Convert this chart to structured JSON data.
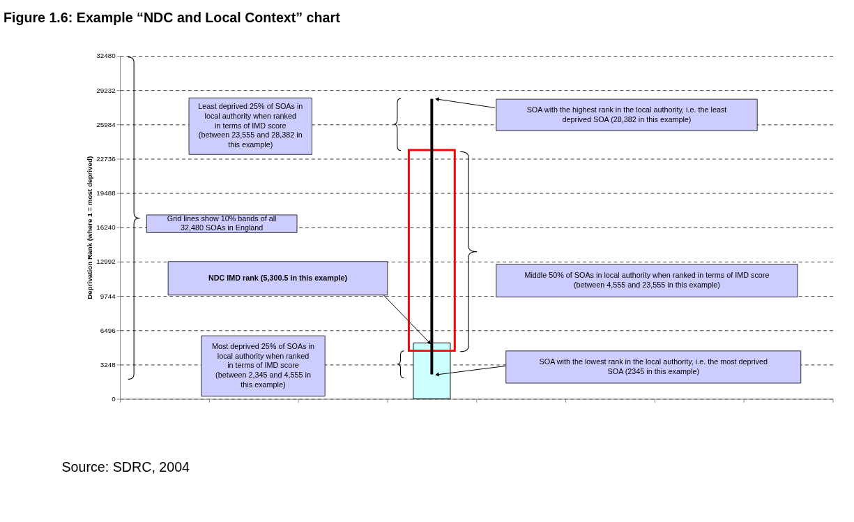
{
  "chart_data": {
    "type": "bar",
    "title": "Figure 1.6: Example “NDC and Local Context” chart",
    "ylabel": "Deprivation Rank (where 1 = most deprived)",
    "categories": [
      null,
      null,
      null,
      null,
      null,
      null,
      null,
      null
    ],
    "ylim": [
      0,
      32480
    ],
    "yticks": [
      0,
      3248,
      6496,
      9744,
      12992,
      16240,
      19488,
      22736,
      25984,
      29232,
      32480
    ],
    "grid": "y",
    "line_style": "dashed",
    "series": [
      {
        "color": "#ccffff",
        "values": [
          null,
          null,
          null,
          5300.5,
          null,
          null,
          null,
          null
        ]
      },
      {
        "color": "#ff0000",
        "base": [
          null,
          null,
          null,
          4555,
          null,
          null,
          null,
          null
        ],
        "values": [
          null,
          null,
          null,
          19000,
          null,
          null,
          null,
          null
        ]
      },
      {
        "color": "#000000",
        "base": [
          null,
          null,
          null,
          2345,
          null,
          null,
          null,
          null
        ],
        "values": [
          null,
          null,
          null,
          26037,
          null,
          null,
          null,
          null
        ]
      }
    ],
    "annotations": [
      "Least deprived 25% of SOAs in local authority when ranked in terms of IMD score (between 23,555 and 28,382 in this example)",
      "SOA with the highest rank in the local authority, i.e. the least deprived SOA (28,382 in this example)",
      "Grid lines show 10% bands of all 32,480 SOAs in England",
      "Middle 50% of SOAs in local authority when ranked in terms of IMD score (between 4,555 and 23,555 in this example)",
      "NDC IMD rank (5,300.5 in this example)",
      "Most deprived 25% of SOAs in local authority when ranked in terms of IMD score (between 2,345 and 4,555 in this example)",
      "SOA with the lowest rank in the local authority, i.e. the most deprived SOA (2345 in this example)",
      "Source: SDRC, 2004"
    ]
  }
}
